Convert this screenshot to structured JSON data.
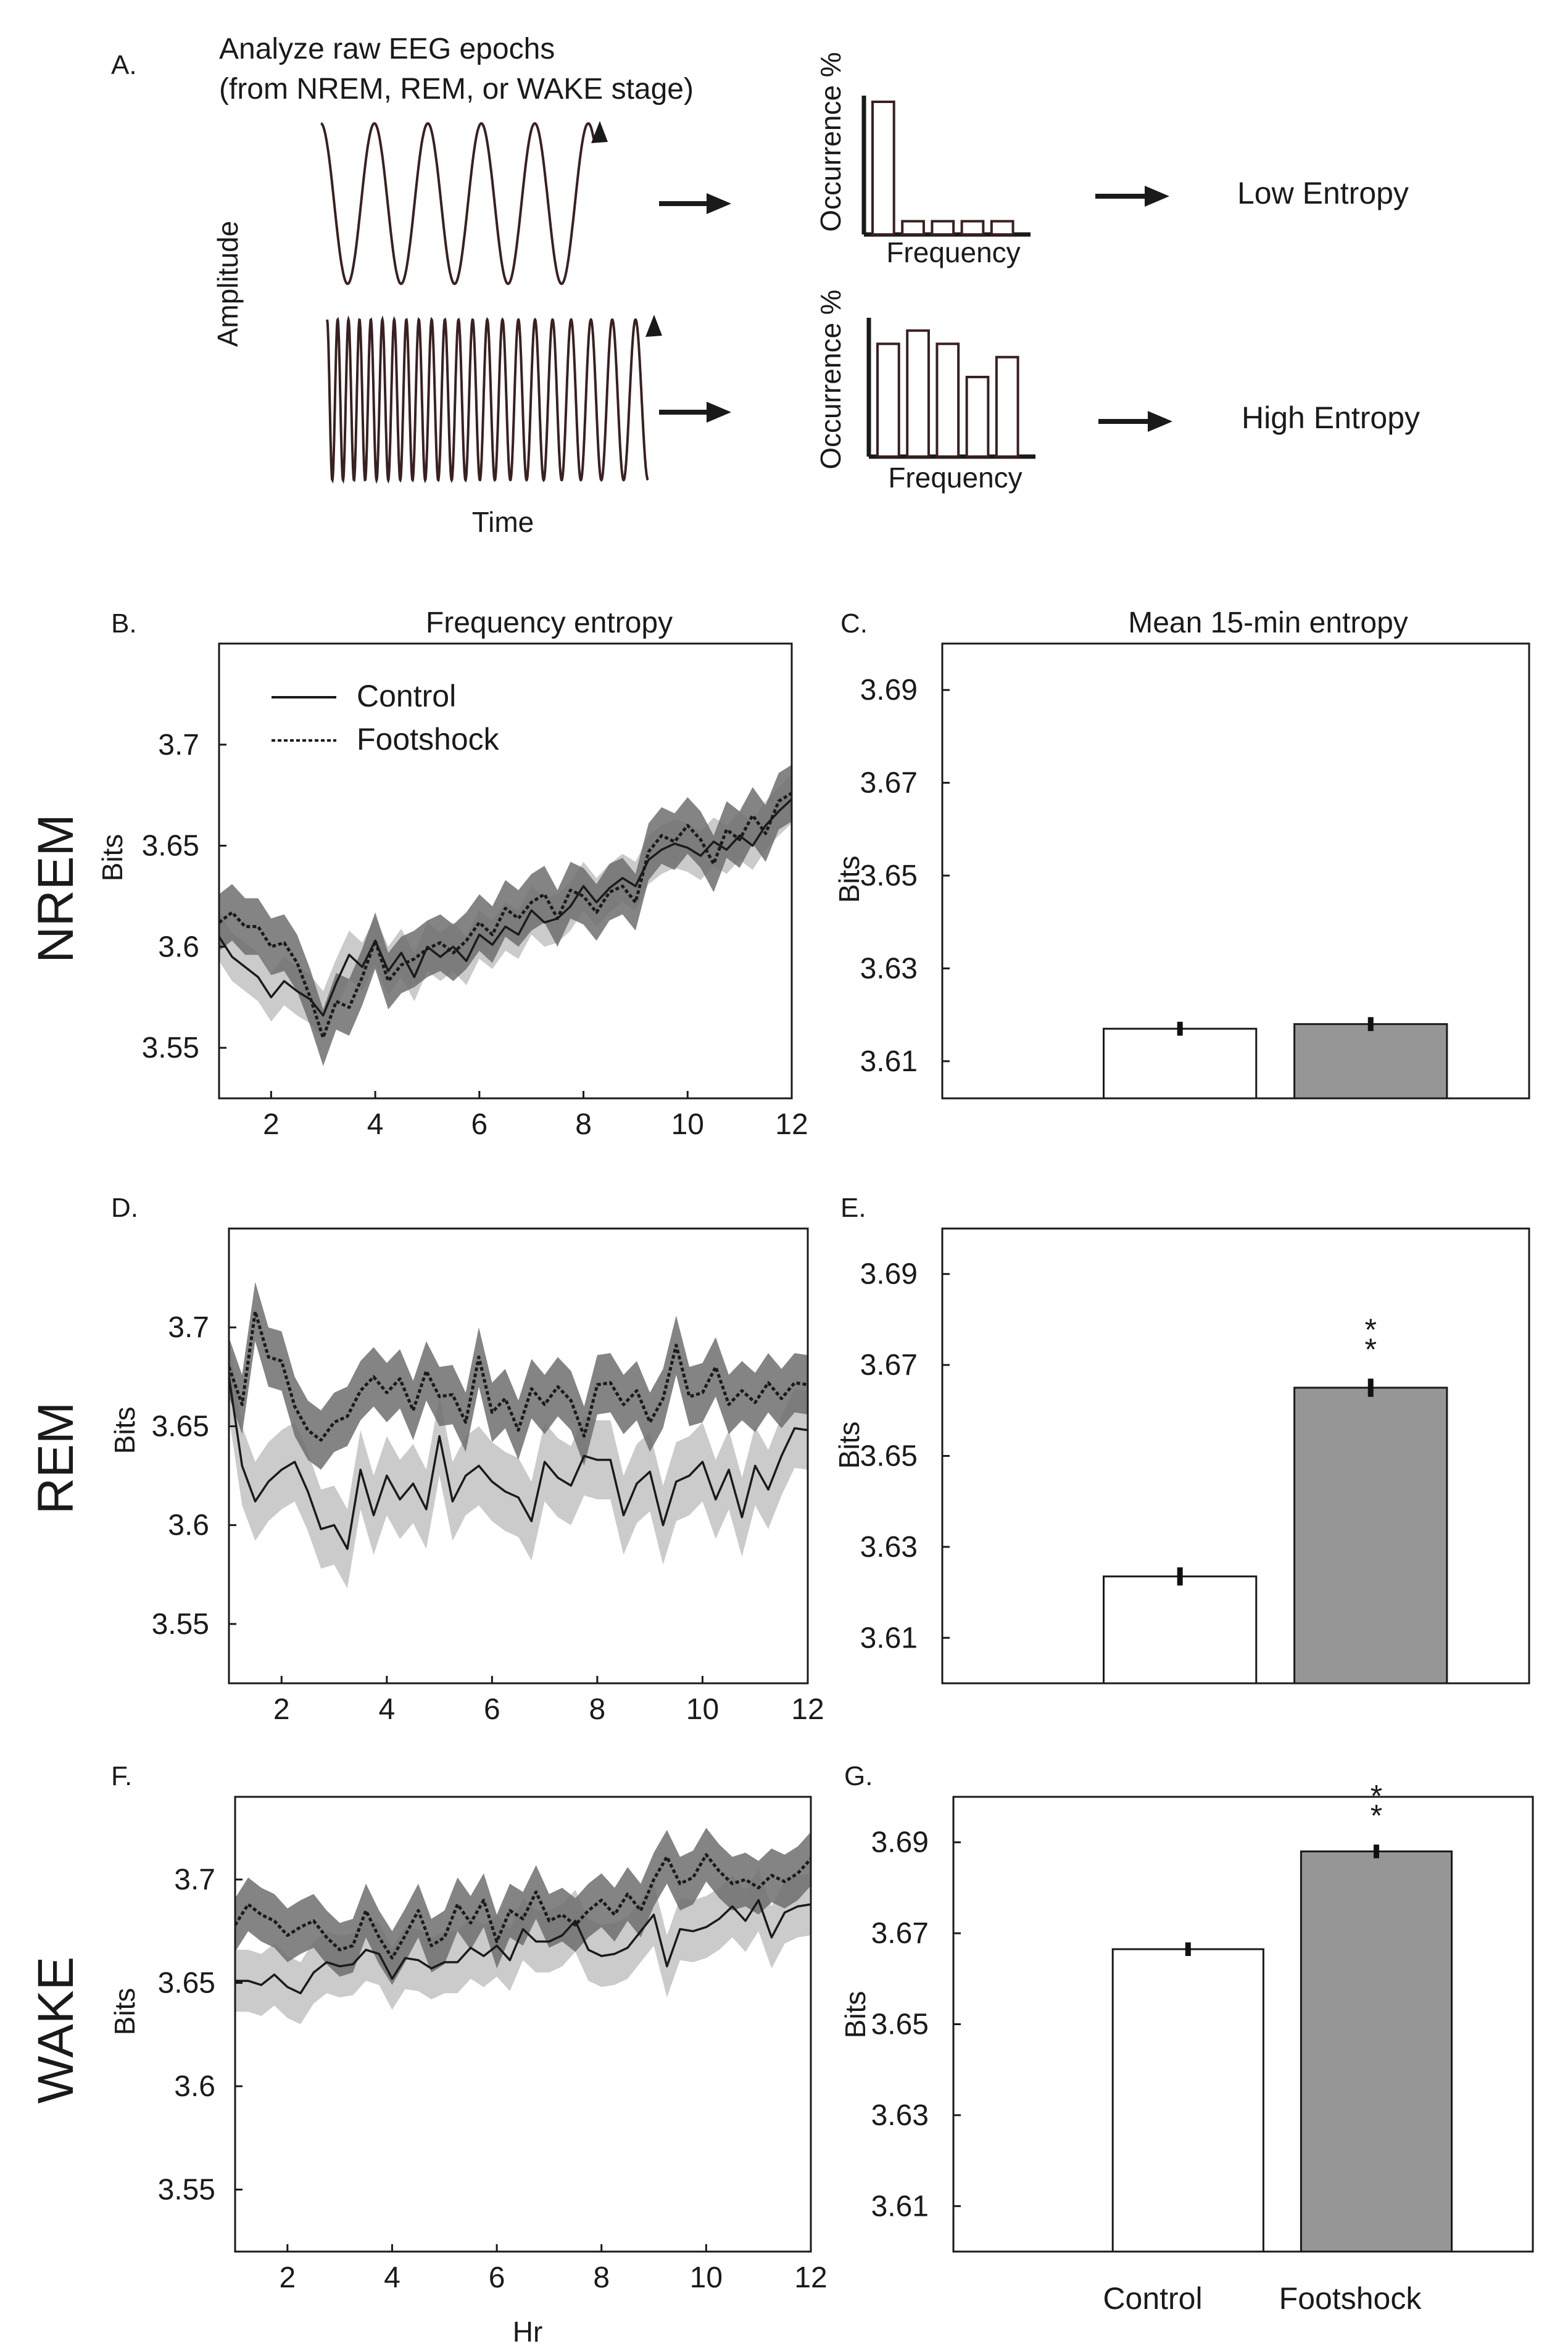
{
  "schematic": {
    "panel_label": "A.",
    "desc_line1": "Analyze raw EEG epochs",
    "desc_line2": "(from NREM, REM, or WAKE stage)",
    "amplitude_label": "Amplitude",
    "time_label": "Time",
    "occurrence_label": "Occurrence %",
    "frequency_label": "Frequency",
    "low_entropy_label": "Low Entropy",
    "high_entropy_label": "High Entropy",
    "low_hist_values": [
      100,
      10,
      10,
      10,
      10
    ],
    "high_hist_values": [
      85,
      95,
      85,
      60,
      75
    ]
  },
  "stage_labels": [
    "NREM",
    "REM",
    "WAKE"
  ],
  "colors": {
    "control_line": "#1a1a1a",
    "footshock_line": "#1a1a1a",
    "control_band": "#c8c8c8",
    "footshock_band": "#6f6f6f",
    "control_bar": "#ffffff",
    "footshock_bar": "#969696"
  },
  "legend": {
    "control": "Control",
    "footshock": "Footshock"
  },
  "chart_data": [
    {
      "panel_label": "B.",
      "type": "line",
      "title": "Frequency entropy",
      "stage": "NREM",
      "xlabel": "",
      "ylabel": "Bits",
      "xlim": [
        1,
        12
      ],
      "ylim": [
        3.525,
        3.75
      ],
      "xticks": [
        2,
        4,
        6,
        8,
        10,
        12
      ],
      "yticks": [
        3.55,
        3.6,
        3.65,
        3.7
      ],
      "legend_position": "top-left",
      "series": [
        {
          "name": "Control",
          "style": "solid",
          "x": [
            1,
            1.25,
            1.5,
            1.75,
            2,
            2.25,
            2.5,
            2.75,
            3,
            3.25,
            3.5,
            3.75,
            4,
            4.25,
            4.5,
            4.75,
            5,
            5.25,
            5.5,
            5.75,
            6,
            6.25,
            6.5,
            6.75,
            7,
            7.25,
            7.5,
            7.75,
            8,
            8.25,
            8.5,
            8.75,
            9,
            9.25,
            9.5,
            9.75,
            10,
            10.25,
            10.5,
            10.75,
            11,
            11.25,
            11.5,
            11.75,
            12
          ],
          "values": [
            3.605,
            3.595,
            3.59,
            3.585,
            3.575,
            3.583,
            3.578,
            3.574,
            3.566,
            3.582,
            3.596,
            3.59,
            3.603,
            3.588,
            3.597,
            3.585,
            3.6,
            3.595,
            3.6,
            3.593,
            3.606,
            3.601,
            3.61,
            3.606,
            3.618,
            3.612,
            3.614,
            3.62,
            3.63,
            3.622,
            3.629,
            3.634,
            3.63,
            3.643,
            3.648,
            3.651,
            3.649,
            3.645,
            3.652,
            3.648,
            3.655,
            3.65,
            3.66,
            3.667,
            3.673
          ],
          "band": 0.012
        },
        {
          "name": "Footshock",
          "style": "dotted",
          "x": [
            1,
            1.25,
            1.5,
            1.75,
            2,
            2.25,
            2.5,
            2.75,
            3,
            3.25,
            3.5,
            3.75,
            4,
            4.25,
            4.5,
            4.75,
            5,
            5.25,
            5.5,
            5.75,
            6,
            6.25,
            6.5,
            6.75,
            7,
            7.25,
            7.5,
            7.75,
            8,
            8.25,
            8.5,
            8.75,
            9,
            9.25,
            9.5,
            9.75,
            10,
            10.25,
            10.5,
            10.75,
            11,
            11.25,
            11.5,
            11.75,
            12
          ],
          "values": [
            3.612,
            3.617,
            3.61,
            3.61,
            3.6,
            3.602,
            3.592,
            3.575,
            3.555,
            3.573,
            3.57,
            3.585,
            3.603,
            3.583,
            3.591,
            3.594,
            3.599,
            3.602,
            3.597,
            3.603,
            3.612,
            3.606,
            3.619,
            3.614,
            3.622,
            3.626,
            3.614,
            3.628,
            3.625,
            3.617,
            3.627,
            3.63,
            3.622,
            3.647,
            3.655,
            3.652,
            3.66,
            3.653,
            3.641,
            3.658,
            3.653,
            3.665,
            3.656,
            3.672,
            3.676
          ],
          "band": 0.014
        }
      ]
    },
    {
      "panel_label": "C.",
      "type": "bar",
      "title": "Mean 15-min entropy",
      "stage": "NREM",
      "xlabel": "",
      "ylabel": "Bits",
      "ylim": [
        3.602,
        3.7
      ],
      "yticks": [
        3.61,
        3.63,
        3.65,
        3.67,
        3.69
      ],
      "categories": [
        "Control",
        "Footshock"
      ],
      "values": [
        3.617,
        3.618
      ],
      "errors": [
        0.0015,
        0.0015
      ],
      "significance": [
        "",
        ""
      ]
    },
    {
      "panel_label": "D.",
      "type": "line",
      "title": "",
      "stage": "REM",
      "xlabel": "",
      "ylabel": "Bits",
      "xlim": [
        1,
        12
      ],
      "ylim": [
        3.52,
        3.75
      ],
      "xticks": [
        2,
        4,
        6,
        8,
        10,
        12
      ],
      "yticks": [
        3.55,
        3.6,
        3.65,
        3.7
      ],
      "series": [
        {
          "name": "Control",
          "style": "solid",
          "x": [
            1,
            1.25,
            1.5,
            1.75,
            2,
            2.25,
            2.5,
            2.75,
            3,
            3.25,
            3.5,
            3.75,
            4,
            4.25,
            4.5,
            4.75,
            5,
            5.25,
            5.5,
            5.75,
            6,
            6.25,
            6.5,
            6.75,
            7,
            7.25,
            7.5,
            7.75,
            8,
            8.25,
            8.5,
            8.75,
            9,
            9.25,
            9.5,
            9.75,
            10,
            10.25,
            10.5,
            10.75,
            11,
            11.25,
            11.5,
            11.75,
            12
          ],
          "values": [
            3.675,
            3.63,
            3.612,
            3.622,
            3.628,
            3.632,
            3.617,
            3.598,
            3.6,
            3.588,
            3.628,
            3.605,
            3.625,
            3.613,
            3.621,
            3.608,
            3.645,
            3.612,
            3.625,
            3.63,
            3.622,
            3.617,
            3.614,
            3.602,
            3.632,
            3.624,
            3.62,
            3.635,
            3.633,
            3.633,
            3.605,
            3.621,
            3.627,
            3.6,
            3.622,
            3.625,
            3.632,
            3.613,
            3.628,
            3.604,
            3.63,
            3.618,
            3.635,
            3.649,
            3.648
          ],
          "band": 0.02
        },
        {
          "name": "Footshock",
          "style": "dotted",
          "x": [
            1,
            1.25,
            1.5,
            1.75,
            2,
            2.25,
            2.5,
            2.75,
            3,
            3.25,
            3.5,
            3.75,
            4,
            4.25,
            4.5,
            4.75,
            5,
            5.25,
            5.5,
            5.75,
            6,
            6.25,
            6.5,
            6.75,
            7,
            7.25,
            7.5,
            7.75,
            8,
            8.25,
            8.5,
            8.75,
            9,
            9.25,
            9.5,
            9.75,
            10,
            10.25,
            10.5,
            10.75,
            11,
            11.25,
            11.5,
            11.75,
            12
          ],
          "values": [
            3.68,
            3.661,
            3.708,
            3.685,
            3.683,
            3.66,
            3.648,
            3.643,
            3.652,
            3.655,
            3.668,
            3.675,
            3.667,
            3.674,
            3.658,
            3.678,
            3.665,
            3.666,
            3.652,
            3.685,
            3.657,
            3.664,
            3.648,
            3.669,
            3.661,
            3.67,
            3.663,
            3.645,
            3.671,
            3.672,
            3.661,
            3.668,
            3.652,
            3.664,
            3.691,
            3.665,
            3.667,
            3.68,
            3.661,
            3.668,
            3.662,
            3.672,
            3.664,
            3.672,
            3.671
          ],
          "band": 0.015
        }
      ]
    },
    {
      "panel_label": "E.",
      "type": "bar",
      "title": "",
      "stage": "REM",
      "xlabel": "",
      "ylabel": "Bits",
      "ylim": [
        3.6,
        3.7
      ],
      "yticks": [
        3.61,
        3.63,
        3.65,
        3.67,
        3.69
      ],
      "categories": [
        "Control",
        "Footshock"
      ],
      "values": [
        3.6235,
        3.665
      ],
      "errors": [
        0.002,
        0.002
      ],
      "significance": [
        "",
        "**"
      ]
    },
    {
      "panel_label": "F.",
      "type": "line",
      "title": "",
      "stage": "WAKE",
      "xlabel": "Hr",
      "ylabel": "Bits",
      "xlim": [
        1,
        12
      ],
      "ylim": [
        3.52,
        3.74
      ],
      "xticks": [
        2,
        4,
        6,
        8,
        10,
        12
      ],
      "yticks": [
        3.55,
        3.6,
        3.65,
        3.7
      ],
      "series": [
        {
          "name": "Control",
          "style": "solid",
          "x": [
            1,
            1.25,
            1.5,
            1.75,
            2,
            2.25,
            2.5,
            2.75,
            3,
            3.25,
            3.5,
            3.75,
            4,
            4.25,
            4.5,
            4.75,
            5,
            5.25,
            5.5,
            5.75,
            6,
            6.25,
            6.5,
            6.75,
            7,
            7.25,
            7.5,
            7.75,
            8,
            8.25,
            8.5,
            8.75,
            9,
            9.25,
            9.5,
            9.75,
            10,
            10.25,
            10.5,
            10.75,
            11,
            11.25,
            11.5,
            11.75,
            12
          ],
          "values": [
            3.651,
            3.651,
            3.649,
            3.654,
            3.648,
            3.645,
            3.655,
            3.66,
            3.658,
            3.659,
            3.666,
            3.664,
            3.652,
            3.662,
            3.661,
            3.657,
            3.66,
            3.66,
            3.667,
            3.663,
            3.668,
            3.661,
            3.676,
            3.67,
            3.67,
            3.673,
            3.68,
            3.666,
            3.663,
            3.664,
            3.667,
            3.675,
            3.683,
            3.658,
            3.676,
            3.675,
            3.677,
            3.681,
            3.687,
            3.68,
            3.69,
            3.672,
            3.684,
            3.687,
            3.688
          ],
          "band": 0.015
        },
        {
          "name": "Footshock",
          "style": "dotted",
          "x": [
            1,
            1.25,
            1.5,
            1.75,
            2,
            2.25,
            2.5,
            2.75,
            3,
            3.25,
            3.5,
            3.75,
            4,
            4.25,
            4.5,
            4.75,
            5,
            5.25,
            5.5,
            5.75,
            6,
            6.25,
            6.5,
            6.75,
            7,
            7.25,
            7.5,
            7.75,
            8,
            8.25,
            8.5,
            8.75,
            9,
            9.25,
            9.5,
            9.75,
            10,
            10.25,
            10.5,
            10.75,
            11,
            11.25,
            11.5,
            11.75,
            12
          ],
          "values": [
            3.678,
            3.688,
            3.683,
            3.68,
            3.673,
            3.677,
            3.68,
            3.672,
            3.666,
            3.668,
            3.685,
            3.672,
            3.662,
            3.673,
            3.685,
            3.668,
            3.672,
            3.688,
            3.679,
            3.69,
            3.67,
            3.685,
            3.681,
            3.694,
            3.68,
            3.683,
            3.678,
            3.685,
            3.69,
            3.683,
            3.693,
            3.685,
            3.7,
            3.711,
            3.698,
            3.701,
            3.712,
            3.704,
            3.698,
            3.7,
            3.696,
            3.702,
            3.699,
            3.703,
            3.71
          ],
          "band": 0.013
        }
      ]
    },
    {
      "panel_label": "G.",
      "type": "bar",
      "title": "",
      "stage": "WAKE",
      "xlabel": "",
      "ylabel": "Bits",
      "ylim": [
        3.6,
        3.7
      ],
      "yticks": [
        3.61,
        3.63,
        3.65,
        3.67,
        3.69
      ],
      "categories": [
        "Control",
        "Footshock"
      ],
      "values": [
        3.6665,
        3.688
      ],
      "errors": [
        0.0015,
        0.0015
      ],
      "significance": [
        "",
        "**"
      ]
    }
  ]
}
